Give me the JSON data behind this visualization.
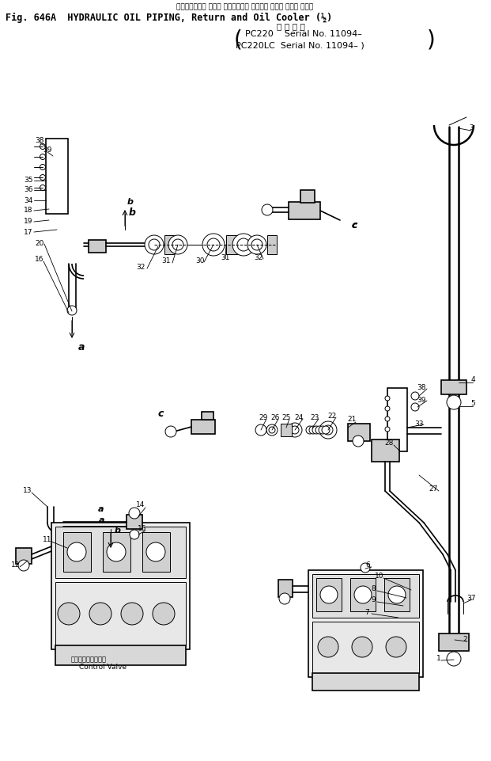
{
  "title_japanese": "ハイドロリック オイル パイピング、 リターン および オイル クーラ",
  "title_line1": "Fig. 646A  HYDRAULIC OIL PIPING, Return and Oil Cooler (½)",
  "title_note": "適 用 号 機",
  "title_pc220": "PC220    Serial No. 11094–",
  "title_pc220lc": "PC220LC  Serial No. 11094– )",
  "bg_color": "#ffffff",
  "line_color": "#000000",
  "figsize": [
    6.21,
    9.61
  ],
  "dpi": 100
}
